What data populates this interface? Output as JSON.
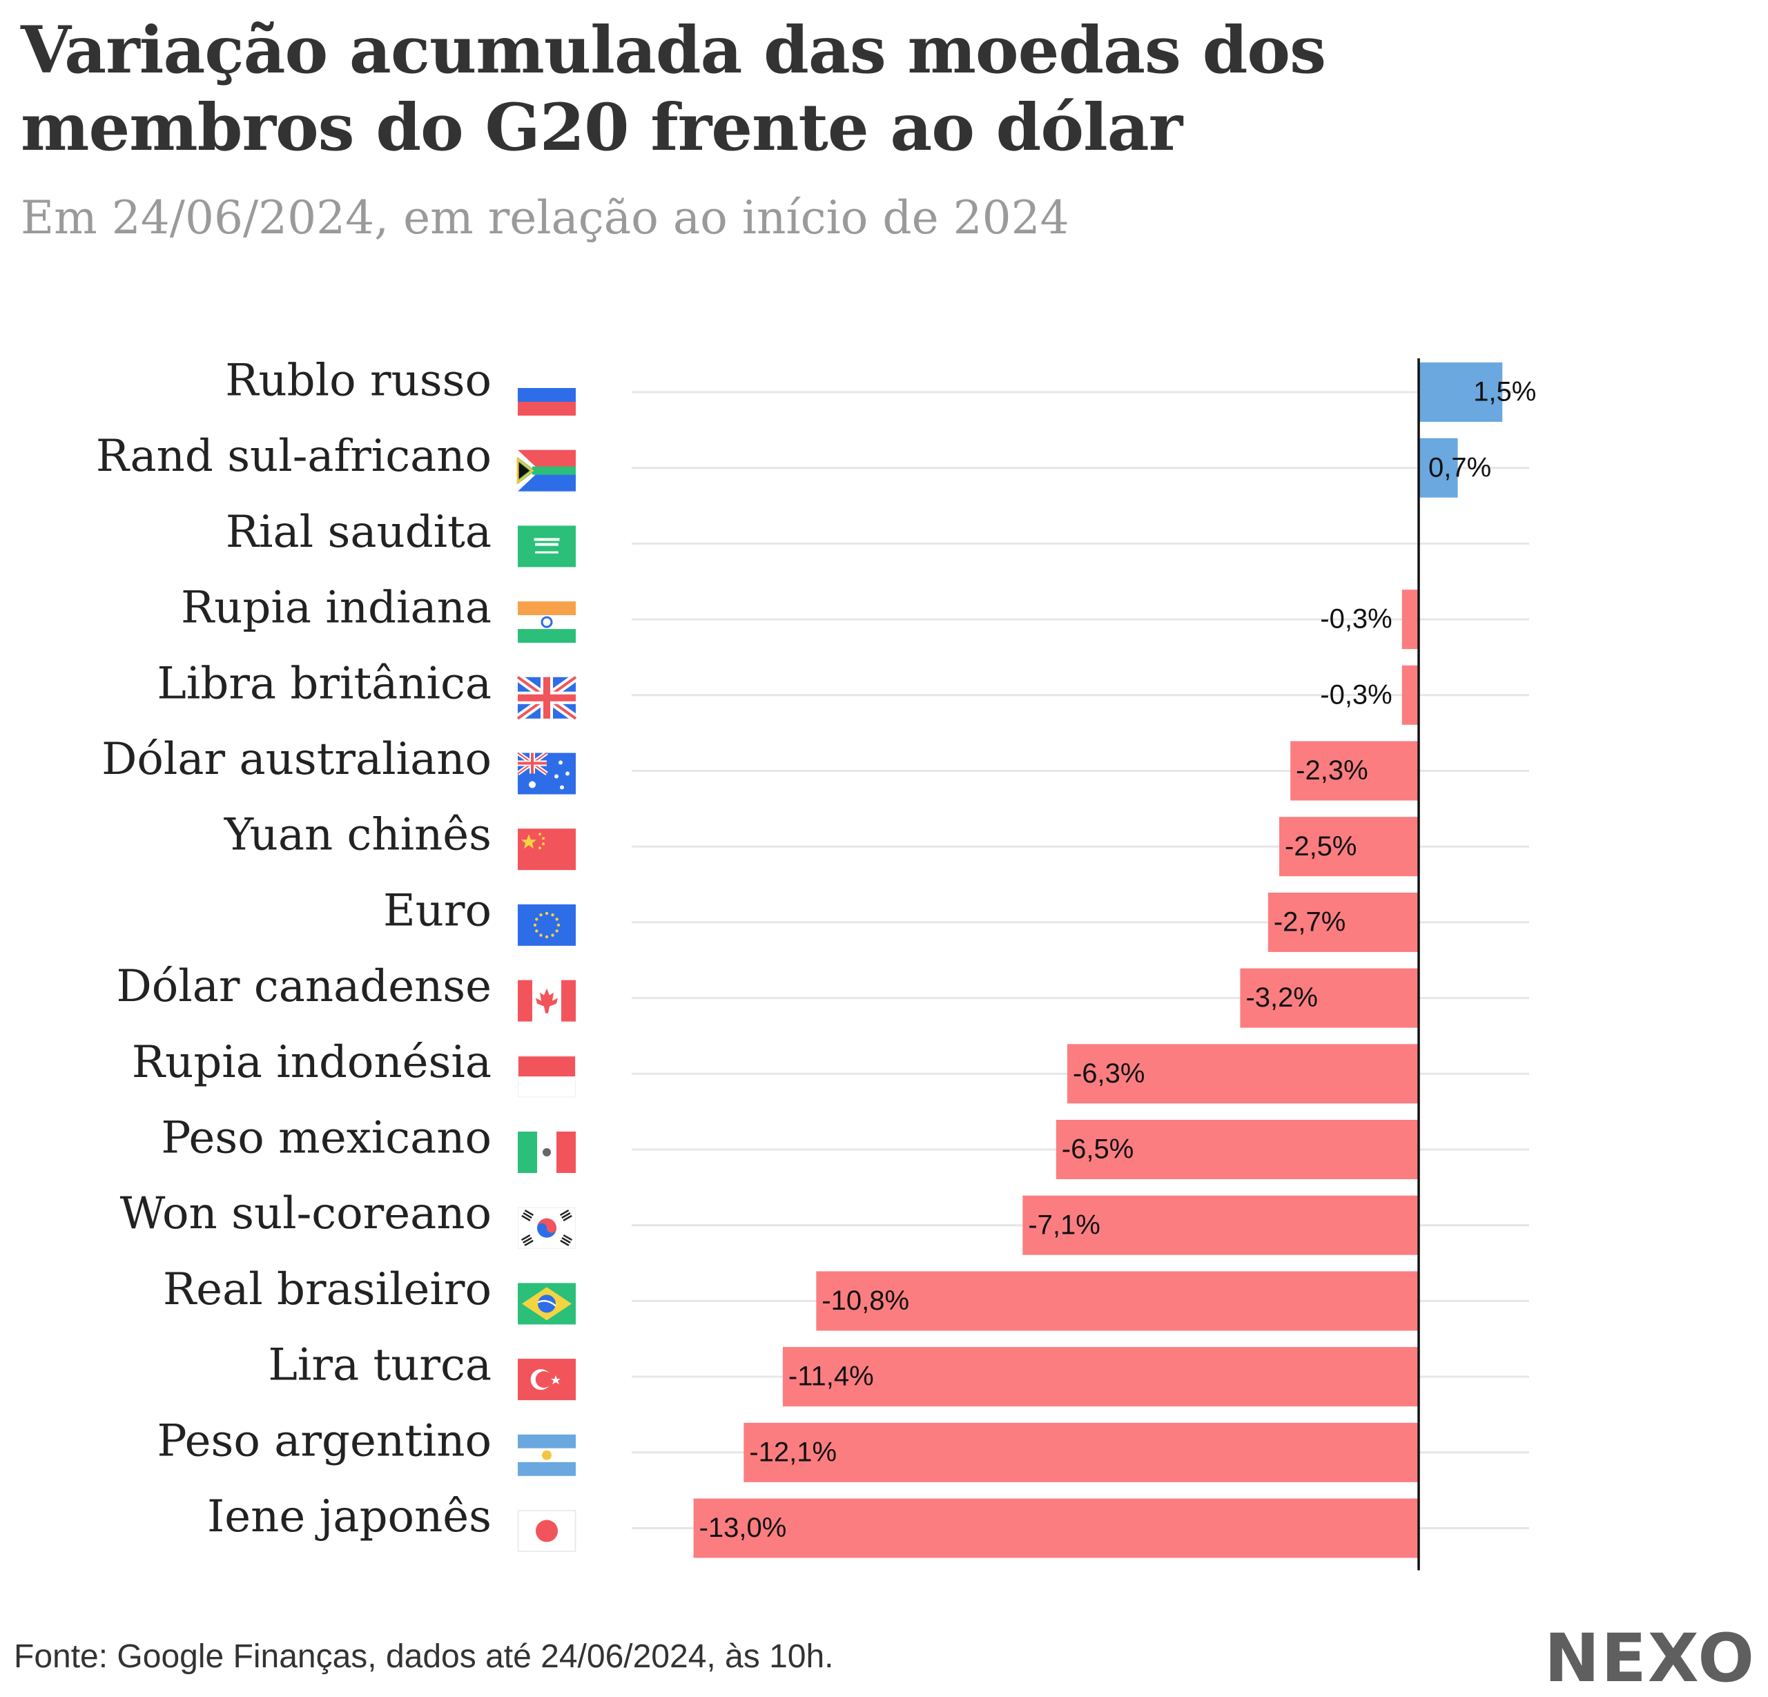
{
  "chart_data": {
    "type": "bar",
    "orientation": "horizontal",
    "title": "Variação acumulada das moedas dos membros do G20 frente ao dólar",
    "subtitle": "Em 24/06/2024, em relação ao início de 2024",
    "categories": [
      "Rublo russo",
      "Rand sul-africano",
      "Rial saudita",
      "Rupia indiana",
      "Libra britânica",
      "Dólar australiano",
      "Yuan chinês",
      "Euro",
      "Dólar canadense",
      "Rupia indonésia",
      "Peso mexicano",
      "Won sul-coreano",
      "Real brasileiro",
      "Lira turca",
      "Peso argentino",
      "Iene japonês"
    ],
    "values": [
      1.5,
      0.7,
      0.0,
      -0.3,
      -0.3,
      -2.3,
      -2.5,
      -2.7,
      -3.2,
      -6.3,
      -6.5,
      -7.1,
      -10.8,
      -11.4,
      -12.1,
      -13.0
    ],
    "value_labels": [
      "1,5%",
      "0,7%",
      "",
      "-0,3%",
      "-0,3%",
      "-2,3%",
      "-2,5%",
      "-2,7%",
      "-3,2%",
      "-6,3%",
      "-6,5%",
      "-7,1%",
      "-10,8%",
      "-11,4%",
      "-12,1%",
      "-13,0%"
    ],
    "flag_icons": [
      "russia-flag-icon",
      "south-africa-flag-icon",
      "saudi-arabia-flag-icon",
      "india-flag-icon",
      "uk-flag-icon",
      "australia-flag-icon",
      "china-flag-icon",
      "eu-flag-icon",
      "canada-flag-icon",
      "indonesia-flag-icon",
      "mexico-flag-icon",
      "south-korea-flag-icon",
      "brazil-flag-icon",
      "turkey-flag-icon",
      "argentina-flag-icon",
      "japan-flag-icon"
    ],
    "xlim": [
      -14.5,
      2.5
    ],
    "grid": true,
    "colors": {
      "positive": "#6aa8df",
      "negative": "#fb7d80",
      "gridline": "#e6e6e6",
      "zero_line": "#111111"
    }
  },
  "footer": {
    "source": "Fonte: Google Finanças, dados até 24/06/2024, às 10h.",
    "logo": "NEXO"
  }
}
